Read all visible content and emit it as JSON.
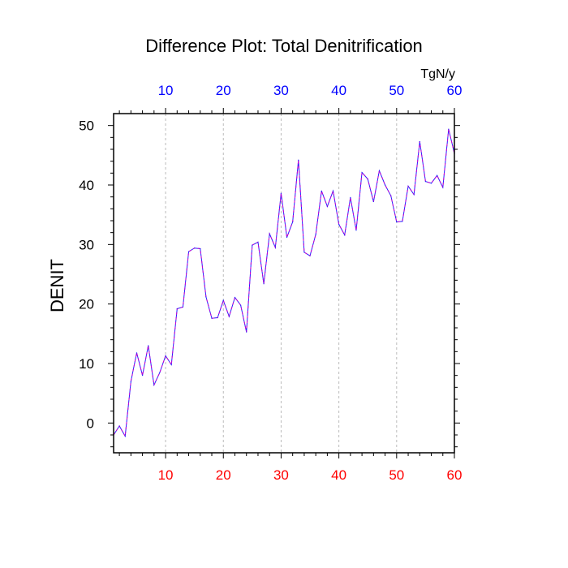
{
  "chart_data": {
    "type": "line",
    "title": "Difference Plot: Total Denitrification",
    "units": "TgN/y",
    "ylabel": "DENIT",
    "xlim": [
      1,
      60
    ],
    "ylim": [
      -5,
      52
    ],
    "x_ticks": [
      10,
      20,
      30,
      40,
      50,
      60
    ],
    "y_ticks": [
      0,
      10,
      20,
      30,
      40,
      50
    ],
    "x_tick_labels_bottom": [
      "10",
      "20",
      "30",
      "40",
      "50",
      "60"
    ],
    "x_tick_labels_top": [
      "10",
      "20",
      "30",
      "40",
      "50",
      "60"
    ],
    "vertical_grid": true,
    "series": [
      {
        "color": "#2222ff",
        "dash_color": "#cc00cc",
        "x": [
          1,
          2,
          3,
          4,
          5,
          6,
          7,
          8,
          9,
          10,
          11,
          12,
          13,
          14,
          15,
          16,
          17,
          18,
          19,
          20,
          21,
          22,
          23,
          24,
          25,
          26,
          27,
          28,
          29,
          30,
          31,
          32,
          33,
          34,
          35,
          36,
          37,
          38,
          39,
          40,
          41,
          42,
          43,
          44,
          45,
          46,
          47,
          48,
          49,
          50,
          51,
          52,
          53,
          54,
          55,
          56,
          57,
          58,
          59,
          60
        ],
        "values": [
          -2.0,
          -0.5,
          -2.2,
          7.0,
          11.8,
          8.0,
          13.0,
          6.4,
          8.5,
          11.3,
          9.8,
          19.2,
          19.5,
          28.8,
          29.4,
          29.3,
          21.2,
          17.6,
          17.7,
          20.6,
          17.9,
          21.1,
          19.8,
          15.3,
          29.9,
          30.4,
          23.4,
          31.8,
          29.5,
          38.6,
          31.2,
          33.8,
          44.2,
          28.7,
          28.1,
          31.7,
          39.0,
          36.4,
          39.0,
          33.4,
          31.6,
          37.9,
          32.4,
          42.1,
          41.0,
          37.2,
          42.4,
          40.0,
          38.2,
          33.8,
          33.9,
          39.8,
          38.4,
          47.3,
          40.6,
          40.3,
          41.6,
          39.6,
          49.4,
          45.3
        ]
      }
    ],
    "colors": {
      "top_axis_labels": "#0000ff",
      "bottom_axis_labels": "#ff0000",
      "frame": "#000000",
      "grid": "#bbbbbb"
    }
  }
}
